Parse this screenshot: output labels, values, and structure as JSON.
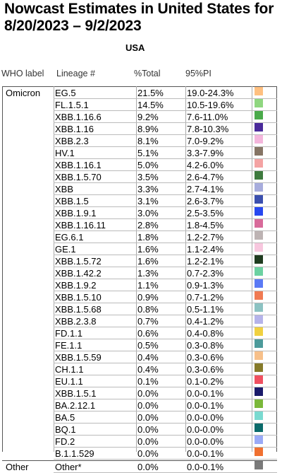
{
  "title": "Nowcast Estimates in United States for 8/20/2023 – 9/2/2023",
  "region": "USA",
  "headers": {
    "who": "WHO label",
    "lineage": "Lineage #",
    "pct": "%Total",
    "pi": "95%PI"
  },
  "groups": [
    {
      "label": "Omicron",
      "rows": [
        {
          "lineage": "EG.5",
          "pct": "21.5%",
          "pi": "19.0-24.3%",
          "color": "#ffc080"
        },
        {
          "lineage": "FL.1.5.1",
          "pct": "14.5%",
          "pi": "10.5-19.6%",
          "color": "#8fd67f"
        },
        {
          "lineage": "XBB.1.16.6",
          "pct": "9.2%",
          "pi": "7.6-11.0%",
          "color": "#4aaa4a"
        },
        {
          "lineage": "XBB.1.16",
          "pct": "8.9%",
          "pi": "7.8-10.3%",
          "color": "#4a2a9a"
        },
        {
          "lineage": "XBB.2.3",
          "pct": "8.1%",
          "pi": "7.0-9.2%",
          "color": "#f4b6dc"
        },
        {
          "lineage": "HV.1",
          "pct": "5.1%",
          "pi": "3.3-7.9%",
          "color": "#857464"
        },
        {
          "lineage": "XBB.1.16.1",
          "pct": "5.0%",
          "pi": "4.2-6.0%",
          "color": "#f4a3a3"
        },
        {
          "lineage": "XBB.1.5.70",
          "pct": "3.5%",
          "pi": "2.6-4.7%",
          "color": "#3e7a3e"
        },
        {
          "lineage": "XBB",
          "pct": "3.3%",
          "pi": "2.7-4.1%",
          "color": "#a7acdc"
        },
        {
          "lineage": "XBB.1.5",
          "pct": "3.1%",
          "pi": "2.6-3.7%",
          "color": "#3b4fae"
        },
        {
          "lineage": "XBB.1.9.1",
          "pct": "3.0%",
          "pi": "2.5-3.5%",
          "color": "#2748f0"
        },
        {
          "lineage": "XBB.1.16.11",
          "pct": "2.8%",
          "pi": "1.8-4.5%",
          "color": "#d86a9a"
        },
        {
          "lineage": "EG.6.1",
          "pct": "1.8%",
          "pi": "1.2-2.7%",
          "color": "#bdb3b3"
        },
        {
          "lineage": "GE.1",
          "pct": "1.6%",
          "pi": "1.1-2.4%",
          "color": "#f7c7de"
        },
        {
          "lineage": "XBB.1.5.72",
          "pct": "1.6%",
          "pi": "1.2-2.1%",
          "color": "#1f3b1f"
        },
        {
          "lineage": "XBB.1.42.2",
          "pct": "1.3%",
          "pi": "0.7-2.3%",
          "color": "#6cd1a1"
        },
        {
          "lineage": "XBB.1.9.2",
          "pct": "1.1%",
          "pi": "0.9-1.3%",
          "color": "#5b7af5"
        },
        {
          "lineage": "XBB.1.5.10",
          "pct": "0.9%",
          "pi": "0.7-1.2%",
          "color": "#f07a52"
        },
        {
          "lineage": "XBB.1.5.68",
          "pct": "0.8%",
          "pi": "0.5-1.1%",
          "color": "#8cc2c2"
        },
        {
          "lineage": "XBB.2.3.8",
          "pct": "0.7%",
          "pi": "0.4-1.2%",
          "color": "#b5b3ea"
        },
        {
          "lineage": "FD.1.1",
          "pct": "0.6%",
          "pi": "0.4-0.8%",
          "color": "#f0d040"
        },
        {
          "lineage": "FE.1.1",
          "pct": "0.5%",
          "pi": "0.3-0.8%",
          "color": "#4c9a9a"
        },
        {
          "lineage": "XBB.1.5.59",
          "pct": "0.4%",
          "pi": "0.3-0.6%",
          "color": "#f7c08a"
        },
        {
          "lineage": "CH.1.1",
          "pct": "0.4%",
          "pi": "0.3-0.6%",
          "color": "#857a2a"
        },
        {
          "lineage": "EU.1.1",
          "pct": "0.1%",
          "pi": "0.1-0.2%",
          "color": "#f05060"
        },
        {
          "lineage": "XBB.1.5.1",
          "pct": "0.0%",
          "pi": "0.0-0.1%",
          "color": "#1a1a6a"
        },
        {
          "lineage": "BA.2.12.1",
          "pct": "0.0%",
          "pi": "0.0-0.1%",
          "color": "#7ab83a"
        },
        {
          "lineage": "BA.5",
          "pct": "0.0%",
          "pi": "0.0-0.0%",
          "color": "#7adad0"
        },
        {
          "lineage": "BQ.1",
          "pct": "0.0%",
          "pi": "0.0-0.0%",
          "color": "#0a6a6a"
        },
        {
          "lineage": "FD.2",
          "pct": "0.0%",
          "pi": "0.0-0.0%",
          "color": "#9aaaf7"
        },
        {
          "lineage": "B.1.1.529",
          "pct": "0.0%",
          "pi": "0.0-0.1%",
          "color": "#f07030"
        }
      ]
    },
    {
      "label": "Other",
      "rows": [
        {
          "lineage": "Other*",
          "pct": "0.0%",
          "pi": "0.0-0.1%",
          "color": "#7a7a7a"
        }
      ]
    }
  ]
}
